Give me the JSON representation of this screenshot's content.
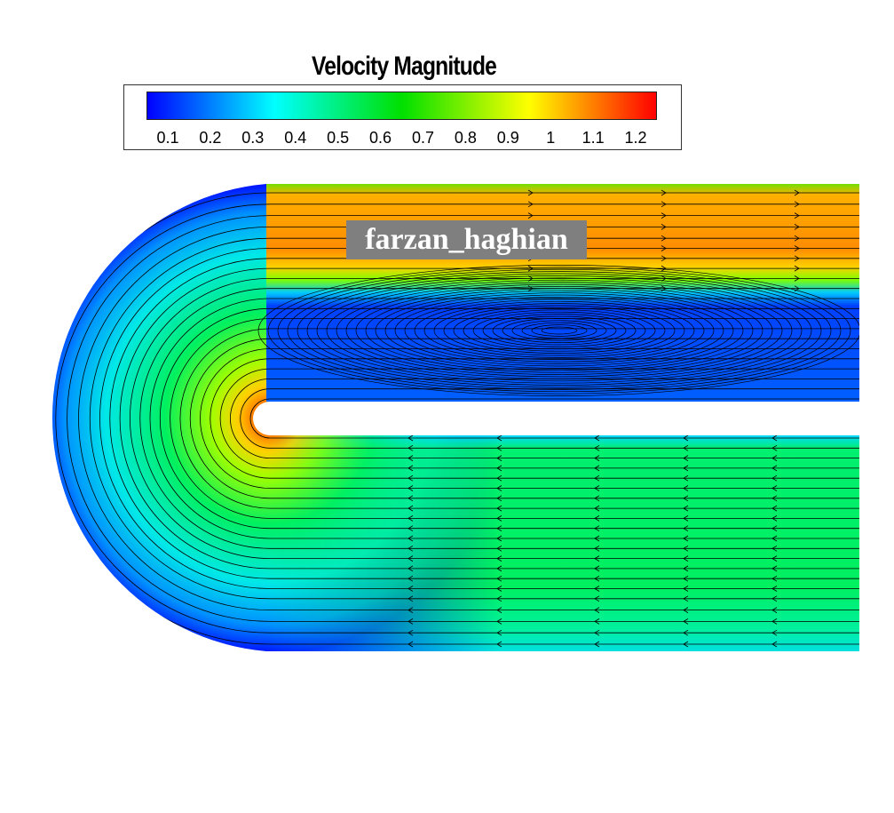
{
  "chart_data": {
    "type": "heatmap",
    "title": "Velocity Magnitude",
    "colorbar": {
      "ticks": [
        "0.1",
        "0.2",
        "0.3",
        "0.4",
        "0.5",
        "0.6",
        "0.7",
        "0.8",
        "0.9",
        "1",
        "1.1",
        "1.2"
      ],
      "range": [
        0.05,
        1.25
      ],
      "colors": [
        "#0000ff",
        "#00ffff",
        "#00e000",
        "#ffff00",
        "#ff0000"
      ]
    },
    "field": "velocity magnitude with streamlines in a U-bend channel",
    "streamlines": true
  },
  "watermark": "farzan_haghian"
}
